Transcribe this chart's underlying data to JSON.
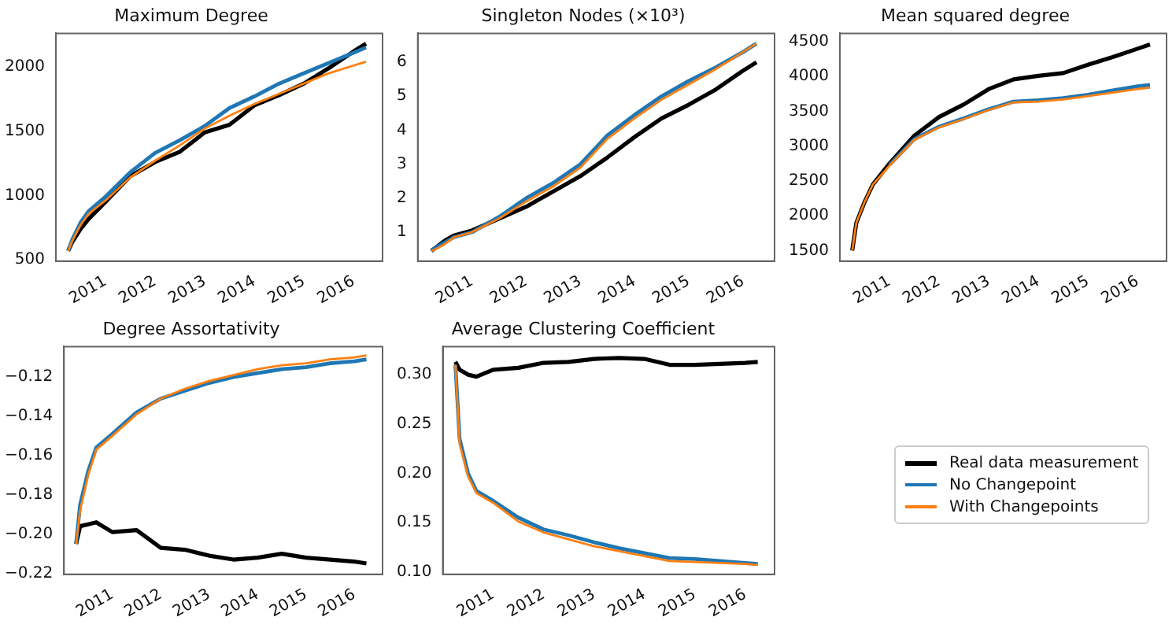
{
  "chart_data": [
    {
      "type": "line",
      "title": "Maximum Degree",
      "x": [
        "2010-04",
        "2010-05",
        "2010-07",
        "2010-09",
        "2011-01",
        "2011-07",
        "2012-01",
        "2012-07",
        "2013-01",
        "2013-07",
        "2014-01",
        "2014-07",
        "2015-01",
        "2015-07",
        "2016-01",
        "2016-04"
      ],
      "xlim": [
        "2010-01",
        "2016-08"
      ],
      "xticks": [
        "2011",
        "2012",
        "2013",
        "2014",
        "2015",
        "2016"
      ],
      "ylim": [
        490,
        2260
      ],
      "yticks": [
        500,
        1000,
        1500,
        2000
      ],
      "series": [
        {
          "color": "#000000",
          "values": [
            570,
            640,
            740,
            820,
            950,
            1150,
            1260,
            1340,
            1490,
            1550,
            1700,
            1780,
            1870,
            1990,
            2120,
            2180
          ]
        },
        {
          "color": "#1f77b4",
          "values": [
            570,
            660,
            790,
            880,
            990,
            1180,
            1330,
            1430,
            1540,
            1680,
            1770,
            1870,
            1950,
            2030,
            2110,
            2150
          ]
        },
        {
          "color": "#ff7f0e",
          "values": [
            570,
            650,
            770,
            860,
            960,
            1140,
            1270,
            1390,
            1520,
            1620,
            1710,
            1790,
            1870,
            1950,
            2010,
            2040
          ]
        }
      ]
    },
    {
      "type": "line",
      "title": "Singleton Nodes (×10³)",
      "x": [
        "2010-04",
        "2010-05",
        "2010-07",
        "2010-09",
        "2011-01",
        "2011-07",
        "2012-01",
        "2012-07",
        "2013-01",
        "2013-07",
        "2014-01",
        "2014-07",
        "2015-01",
        "2015-07",
        "2016-01",
        "2016-04"
      ],
      "xlim": [
        "2010-01",
        "2016-08"
      ],
      "xticks": [
        "2011",
        "2012",
        "2013",
        "2014",
        "2015",
        "2016"
      ],
      "ylim": [
        0.15,
        6.85
      ],
      "yticks": [
        1,
        2,
        3,
        4,
        5,
        6
      ],
      "series": [
        {
          "color": "#000000",
          "values": [
            0.45,
            0.55,
            0.75,
            0.9,
            1.05,
            1.4,
            1.75,
            2.2,
            2.65,
            3.2,
            3.8,
            4.35,
            4.75,
            5.2,
            5.75,
            6.0
          ]
        },
        {
          "color": "#1f77b4",
          "values": [
            0.45,
            0.55,
            0.7,
            0.85,
            1.0,
            1.45,
            2.0,
            2.45,
            3.0,
            3.85,
            4.45,
            5.0,
            5.45,
            5.85,
            6.3,
            6.55
          ]
        },
        {
          "color": "#ff7f0e",
          "values": [
            0.45,
            0.5,
            0.65,
            0.85,
            1.0,
            1.4,
            1.9,
            2.35,
            2.9,
            3.75,
            4.35,
            4.9,
            5.35,
            5.8,
            6.3,
            6.55
          ]
        }
      ]
    },
    {
      "type": "line",
      "title": "Mean squared degree",
      "x": [
        "2010-04",
        "2010-05",
        "2010-07",
        "2010-09",
        "2011-01",
        "2011-07",
        "2012-01",
        "2012-07",
        "2013-01",
        "2013-07",
        "2014-01",
        "2014-07",
        "2015-01",
        "2015-07",
        "2016-01",
        "2016-04"
      ],
      "xlim": [
        "2010-01",
        "2016-08"
      ],
      "xticks": [
        "2011",
        "2012",
        "2013",
        "2014",
        "2015",
        "2016"
      ],
      "ylim": [
        1350,
        4620
      ],
      "yticks": [
        1500,
        2000,
        2500,
        3000,
        3500,
        4000,
        4500
      ],
      "series": [
        {
          "color": "#000000",
          "values": [
            1500,
            1900,
            2200,
            2450,
            2750,
            3150,
            3420,
            3600,
            3820,
            3960,
            4010,
            4050,
            4170,
            4280,
            4400,
            4460
          ]
        },
        {
          "color": "#1f77b4",
          "values": [
            null,
            null,
            null,
            null,
            2730,
            3100,
            3280,
            3400,
            3530,
            3640,
            3660,
            3690,
            3740,
            3800,
            3860,
            3880
          ]
        },
        {
          "color": "#ff7f0e",
          "values": [
            1500,
            1900,
            2200,
            2450,
            2720,
            3090,
            3270,
            3390,
            3520,
            3630,
            3640,
            3670,
            3720,
            3770,
            3820,
            3840
          ]
        }
      ]
    },
    {
      "type": "line",
      "title": "Degree Assortativity",
      "x": [
        "2010-04",
        "2010-05",
        "2010-07",
        "2010-09",
        "2011-01",
        "2011-07",
        "2012-01",
        "2012-07",
        "2013-01",
        "2013-07",
        "2014-01",
        "2014-07",
        "2015-01",
        "2015-07",
        "2016-01",
        "2016-04"
      ],
      "xlim": [
        "2010-01",
        "2016-08"
      ],
      "xticks": [
        "2011",
        "2012",
        "2013",
        "2014",
        "2015",
        "2016"
      ],
      "ylim": [
        -0.2205,
        -0.1045
      ],
      "yticks": [
        {
          "value": -0.22,
          "label": "−0.22"
        },
        {
          "value": -0.2,
          "label": "−0.20"
        },
        {
          "value": -0.18,
          "label": "−0.18"
        },
        {
          "value": -0.16,
          "label": "−0.16"
        },
        {
          "value": -0.14,
          "label": "−0.14"
        },
        {
          "value": -0.12,
          "label": "−0.12"
        }
      ],
      "series": [
        {
          "color": "#000000",
          "values": [
            -0.205,
            -0.196,
            -0.195,
            -0.194,
            -0.199,
            -0.198,
            -0.207,
            -0.208,
            -0.211,
            -0.213,
            -0.212,
            -0.21,
            -0.212,
            -0.213,
            -0.214,
            -0.215
          ]
        },
        {
          "color": "#1f77b4",
          "values": [
            -0.205,
            -0.185,
            -0.168,
            -0.156,
            -0.149,
            -0.138,
            -0.131,
            -0.127,
            -0.123,
            -0.12,
            -0.118,
            -0.116,
            -0.115,
            -0.113,
            -0.112,
            -0.111
          ]
        },
        {
          "color": "#ff7f0e",
          "values": [
            -0.205,
            -0.188,
            -0.17,
            -0.157,
            -0.15,
            -0.139,
            -0.131,
            -0.126,
            -0.122,
            -0.119,
            -0.116,
            -0.114,
            -0.113,
            -0.111,
            -0.11,
            -0.109
          ]
        }
      ]
    },
    {
      "type": "line",
      "title": "Average Clustering Coefficient",
      "x": [
        "2010-04",
        "2010-05",
        "2010-07",
        "2010-09",
        "2011-01",
        "2011-07",
        "2012-01",
        "2012-07",
        "2013-01",
        "2013-07",
        "2014-01",
        "2014-07",
        "2015-01",
        "2015-07",
        "2016-01",
        "2016-04"
      ],
      "xlim": [
        "2010-01",
        "2016-08"
      ],
      "xticks": [
        "2011",
        "2012",
        "2013",
        "2014",
        "2015",
        "2016"
      ],
      "ylim": [
        0.0975,
        0.3285
      ],
      "yticks": [
        {
          "value": 0.1,
          "label": "0.10"
        },
        {
          "value": 0.15,
          "label": "0.15"
        },
        {
          "value": 0.2,
          "label": "0.20"
        },
        {
          "value": 0.25,
          "label": "0.25"
        },
        {
          "value": 0.3,
          "label": "0.30"
        }
      ],
      "legend": "right",
      "series": [
        {
          "name": "Real data measurement",
          "color": "#000000",
          "values": [
            0.313,
            0.305,
            0.3,
            0.298,
            0.305,
            0.307,
            0.312,
            0.313,
            0.316,
            0.317,
            0.316,
            0.31,
            0.31,
            0.311,
            0.312,
            0.313
          ]
        },
        {
          "name": "No Changepoint",
          "color": "#1f77b4",
          "values": [
            0.31,
            0.235,
            0.2,
            0.182,
            0.172,
            0.155,
            0.143,
            0.137,
            0.13,
            0.124,
            0.119,
            0.114,
            0.113,
            0.111,
            0.109,
            0.108
          ]
        },
        {
          "name": "With Changepoints",
          "color": "#ff7f0e",
          "values": [
            0.31,
            0.23,
            0.197,
            0.18,
            0.17,
            0.151,
            0.14,
            0.133,
            0.126,
            0.121,
            0.116,
            0.111,
            0.11,
            0.109,
            0.108,
            0.107
          ]
        }
      ]
    }
  ]
}
